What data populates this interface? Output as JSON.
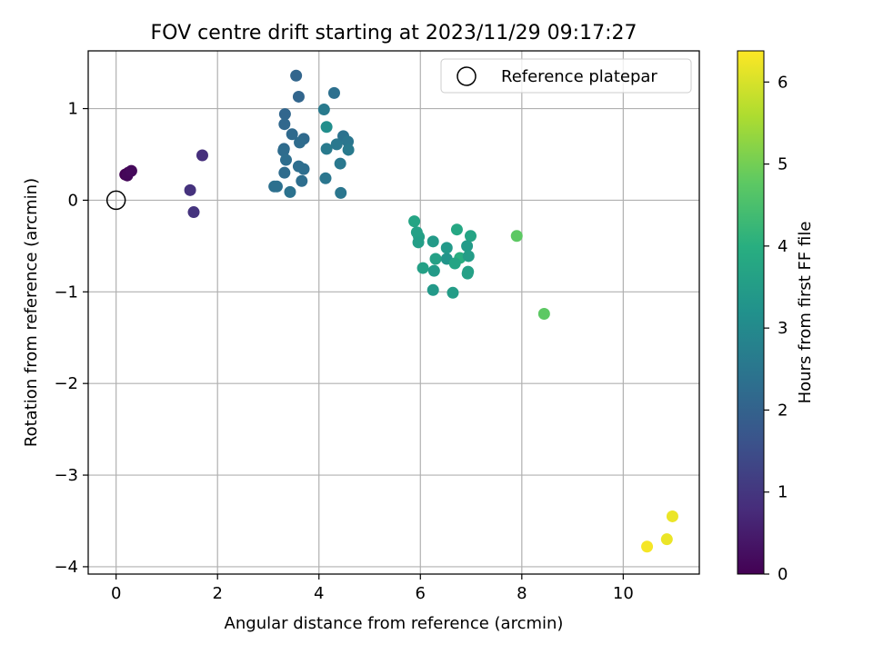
{
  "chart_data": {
    "type": "scatter",
    "title": "FOV centre drift starting at 2023/11/29 09:17:27",
    "xlabel": "Angular distance from reference (arcmin)",
    "ylabel": "Rotation from reference (arcmin)",
    "xlim": [
      -0.55,
      11.5
    ],
    "ylim": [
      -4.08,
      1.63
    ],
    "xticks": [
      0,
      2,
      4,
      6,
      8,
      10
    ],
    "yticks": [
      -4,
      -3,
      -2,
      -1,
      0,
      1
    ],
    "x_tick_labels": [
      "0",
      "2",
      "4",
      "6",
      "8",
      "10"
    ],
    "y_tick_labels": [
      "−4",
      "−3",
      "−2",
      "−1",
      "0",
      "1"
    ],
    "grid": true,
    "legend": {
      "placement": "top-right",
      "entries": [
        {
          "label": "Reference platepar",
          "marker": "open-circle",
          "x": 0,
          "y": 0
        }
      ]
    },
    "colorbar": {
      "label": "Hours from first FF file",
      "range": [
        0,
        6.38
      ],
      "ticks": [
        0,
        1,
        2,
        3,
        4,
        5,
        6
      ],
      "tick_labels": [
        "0",
        "1",
        "2",
        "3",
        "4",
        "5",
        "6"
      ],
      "colormap": "viridis"
    },
    "points": [
      {
        "x": 0.18,
        "y": 0.28,
        "c": 0.0
      },
      {
        "x": 0.24,
        "y": 0.3,
        "c": 0.05
      },
      {
        "x": 0.22,
        "y": 0.27,
        "c": 0.1
      },
      {
        "x": 0.3,
        "y": 0.32,
        "c": 0.15
      },
      {
        "x": 1.7,
        "y": 0.49,
        "c": 0.85
      },
      {
        "x": 1.46,
        "y": 0.11,
        "c": 0.9
      },
      {
        "x": 1.53,
        "y": -0.13,
        "c": 0.95
      },
      {
        "x": 3.55,
        "y": 1.36,
        "c": 2.1
      },
      {
        "x": 4.3,
        "y": 1.17,
        "c": 2.35
      },
      {
        "x": 3.6,
        "y": 1.13,
        "c": 2.1
      },
      {
        "x": 4.1,
        "y": 0.99,
        "c": 2.6
      },
      {
        "x": 3.33,
        "y": 0.94,
        "c": 2.1
      },
      {
        "x": 3.32,
        "y": 0.83,
        "c": 2.15
      },
      {
        "x": 4.15,
        "y": 0.8,
        "c": 3.1
      },
      {
        "x": 3.47,
        "y": 0.72,
        "c": 2.2
      },
      {
        "x": 4.48,
        "y": 0.7,
        "c": 2.4
      },
      {
        "x": 3.7,
        "y": 0.67,
        "c": 2.2
      },
      {
        "x": 3.62,
        "y": 0.63,
        "c": 2.25
      },
      {
        "x": 4.57,
        "y": 0.64,
        "c": 2.5
      },
      {
        "x": 4.35,
        "y": 0.61,
        "c": 2.55
      },
      {
        "x": 3.31,
        "y": 0.56,
        "c": 2.2
      },
      {
        "x": 4.15,
        "y": 0.56,
        "c": 2.6
      },
      {
        "x": 4.58,
        "y": 0.55,
        "c": 2.6
      },
      {
        "x": 3.3,
        "y": 0.54,
        "c": 2.25
      },
      {
        "x": 3.35,
        "y": 0.44,
        "c": 2.3
      },
      {
        "x": 4.42,
        "y": 0.4,
        "c": 2.55
      },
      {
        "x": 3.6,
        "y": 0.37,
        "c": 2.3
      },
      {
        "x": 3.7,
        "y": 0.34,
        "c": 2.3
      },
      {
        "x": 3.32,
        "y": 0.3,
        "c": 2.25
      },
      {
        "x": 4.13,
        "y": 0.24,
        "c": 2.5
      },
      {
        "x": 3.66,
        "y": 0.21,
        "c": 2.3
      },
      {
        "x": 3.12,
        "y": 0.15,
        "c": 2.35
      },
      {
        "x": 3.17,
        "y": 0.15,
        "c": 2.35
      },
      {
        "x": 3.43,
        "y": 0.09,
        "c": 2.4
      },
      {
        "x": 4.43,
        "y": 0.08,
        "c": 2.5
      },
      {
        "x": 5.88,
        "y": -0.23,
        "c": 3.7
      },
      {
        "x": 5.93,
        "y": -0.35,
        "c": 3.6
      },
      {
        "x": 5.97,
        "y": -0.4,
        "c": 3.6
      },
      {
        "x": 5.96,
        "y": -0.46,
        "c": 3.55
      },
      {
        "x": 6.72,
        "y": -0.32,
        "c": 3.8
      },
      {
        "x": 6.99,
        "y": -0.39,
        "c": 3.7
      },
      {
        "x": 6.25,
        "y": -0.45,
        "c": 3.45
      },
      {
        "x": 6.52,
        "y": -0.52,
        "c": 3.4
      },
      {
        "x": 6.92,
        "y": -0.5,
        "c": 3.45
      },
      {
        "x": 6.78,
        "y": -0.63,
        "c": 4.0
      },
      {
        "x": 6.95,
        "y": -0.61,
        "c": 3.5
      },
      {
        "x": 6.52,
        "y": -0.64,
        "c": 3.3
      },
      {
        "x": 6.3,
        "y": -0.64,
        "c": 3.6
      },
      {
        "x": 6.68,
        "y": -0.69,
        "c": 3.7
      },
      {
        "x": 6.05,
        "y": -0.74,
        "c": 3.6
      },
      {
        "x": 6.27,
        "y": -0.77,
        "c": 3.45
      },
      {
        "x": 6.93,
        "y": -0.8,
        "c": 3.6
      },
      {
        "x": 6.94,
        "y": -0.78,
        "c": 3.6
      },
      {
        "x": 6.25,
        "y": -0.98,
        "c": 3.4
      },
      {
        "x": 6.64,
        "y": -1.01,
        "c": 3.5
      },
      {
        "x": 7.9,
        "y": -0.39,
        "c": 4.75
      },
      {
        "x": 8.44,
        "y": -1.24,
        "c": 4.75
      },
      {
        "x": 10.97,
        "y": -3.45,
        "c": 6.2
      },
      {
        "x": 10.86,
        "y": -3.7,
        "c": 6.2
      },
      {
        "x": 10.47,
        "y": -3.78,
        "c": 6.3
      }
    ]
  }
}
